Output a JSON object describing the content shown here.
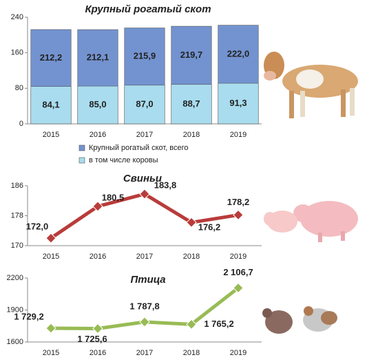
{
  "chart_data": [
    {
      "type": "bar",
      "title": "Крупный рогатый скот",
      "categories": [
        "2015",
        "2016",
        "2017",
        "2018",
        "2019"
      ],
      "series": [
        {
          "name": "Крупный рогатый скот, всего",
          "color": "#7393d0",
          "values": [
            212.2,
            212.1,
            215.9,
            219.7,
            222.0
          ],
          "value_labels": [
            "212,2",
            "212,1",
            "215,9",
            "219,7",
            "222,0"
          ]
        },
        {
          "name": "в том числе коровы",
          "color": "#a8dcee",
          "values": [
            84.1,
            85.0,
            87.0,
            88.7,
            91.3
          ],
          "value_labels": [
            "84,1",
            "85,0",
            "87,0",
            "88,7",
            "91,3"
          ]
        }
      ],
      "ylim": [
        0,
        240
      ],
      "yticks": [
        0,
        80,
        160,
        240
      ]
    },
    {
      "type": "line",
      "title": "Свиньи",
      "categories": [
        "2015",
        "2016",
        "2017",
        "2018",
        "2019"
      ],
      "series": [
        {
          "color": "#b83c3a",
          "values": [
            172.0,
            180.5,
            183.8,
            176.2,
            178.2
          ],
          "value_labels": [
            "172,0",
            "180,5",
            "183,8",
            "176,2",
            "178,2"
          ]
        }
      ],
      "ylim": [
        170,
        186
      ],
      "yticks": [
        170,
        178,
        186
      ]
    },
    {
      "type": "line",
      "title": "Птица",
      "categories": [
        "2015",
        "2016",
        "2017",
        "2018",
        "2019"
      ],
      "series": [
        {
          "color": "#98bb55",
          "values": [
            1729.2,
            1725.6,
            1787.8,
            1765.2,
            2106.7
          ],
          "value_labels": [
            "1 729,2",
            "1 725,6",
            "1 787,8",
            "1 765,2",
            "2 106,7"
          ]
        }
      ],
      "ylim": [
        1600,
        2200
      ],
      "yticks": [
        1600,
        1900,
        2200
      ]
    }
  ]
}
